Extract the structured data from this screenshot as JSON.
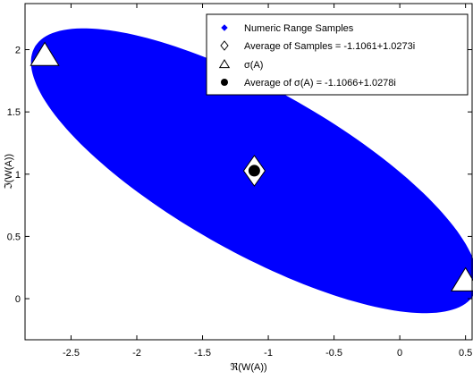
{
  "chart_data": {
    "type": "scatter",
    "title": "",
    "xlabel": "ℜ(W(A))",
    "ylabel": "ℑ(W(A))",
    "xlim": [
      -2.85,
      0.55
    ],
    "ylim": [
      -0.33,
      2.37
    ],
    "xticks": [
      -2.5,
      -2,
      -1.5,
      -1,
      -0.5,
      0,
      0.5
    ],
    "xtick_labels": [
      "-2.5",
      "-2",
      "-1.5",
      "-1",
      "-0.5",
      "0",
      "0.5"
    ],
    "yticks": [
      0,
      0.5,
      1,
      1.5,
      2
    ],
    "ytick_labels": [
      "0",
      "0.5",
      "1",
      "1.5",
      "2"
    ],
    "grid": false,
    "legend_position": "top-right",
    "series": [
      {
        "name": "Numeric Range Samples",
        "marker": "point",
        "color": "#0000ff",
        "region": "ellipse",
        "center": [
          -1.1061,
          1.0273
        ],
        "semi_major": 1.94,
        "semi_minor": 0.64,
        "rotation_deg": -31
      },
      {
        "name": "Average of Samples = -1.1061+1.0273i",
        "marker": "diamond",
        "color": "#000000",
        "points": [
          [
            -1.1061,
            1.0273
          ]
        ]
      },
      {
        "name": "σ(A)",
        "marker": "triangle",
        "color": "#000000",
        "points": [
          [
            -2.7,
            1.95
          ],
          [
            0.5,
            0.14
          ]
        ]
      },
      {
        "name": "Average of σ(A) = -1.1066+1.0278i",
        "marker": "filled-circle",
        "color": "#000000",
        "points": [
          [
            -1.1066,
            1.0278
          ]
        ]
      }
    ],
    "colors": {
      "fill": "#0000ff",
      "axes": "#000000",
      "marker_fill": "#ffffff",
      "background": "#ffffff"
    }
  }
}
